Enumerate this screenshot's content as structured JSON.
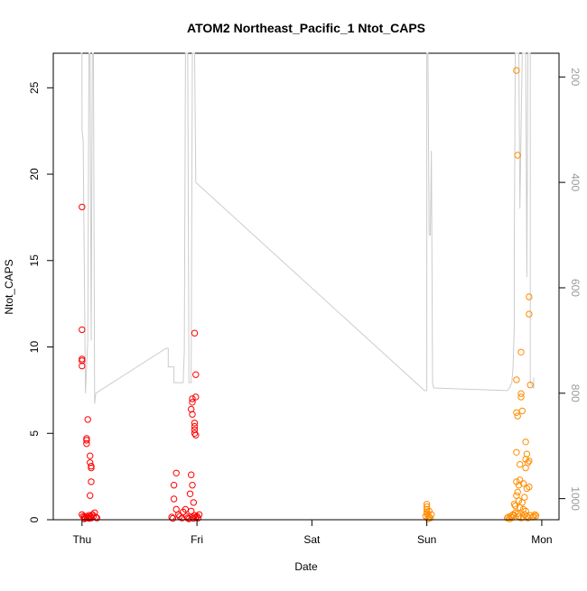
{
  "chart_data": {
    "type": "scatter",
    "title": "ATOM2 Northeast_Pacific_1 Ntot_CAPS",
    "xlabel": "Date",
    "ylabel": "Ntot_CAPS",
    "x_ticks": [
      "Thu",
      "Fri",
      "Sat",
      "Sun",
      "Mon"
    ],
    "xlim_days": [
      -0.25,
      4.15
    ],
    "ylim": [
      0,
      27
    ],
    "y_ticks": [
      0,
      5,
      10,
      15,
      20,
      25
    ],
    "y2_ticks": [
      200,
      400,
      600,
      800,
      1000
    ],
    "y2lim_reversed": [
      1040,
      155
    ],
    "y2_color": "#9a9a9a",
    "grid": false,
    "legend": "none",
    "series": [
      {
        "color": "#ff0000",
        "marker": "open-circle",
        "points": [
          [
            0.0,
            18.1
          ],
          [
            0.0,
            11.0
          ],
          [
            0.0,
            9.3
          ],
          [
            0.0,
            9.2
          ],
          [
            0.0,
            8.9
          ],
          [
            0.05,
            5.8
          ],
          [
            0.04,
            4.7
          ],
          [
            0.04,
            4.6
          ],
          [
            0.04,
            4.4
          ],
          [
            0.07,
            3.7
          ],
          [
            0.07,
            3.3
          ],
          [
            0.08,
            3.1
          ],
          [
            0.08,
            3.0
          ],
          [
            0.08,
            2.2
          ],
          [
            0.07,
            1.4
          ],
          [
            0.0,
            0.3
          ],
          [
            0.01,
            0.2
          ],
          [
            0.02,
            0.15
          ],
          [
            0.03,
            0.1
          ],
          [
            0.04,
            0.2
          ],
          [
            0.05,
            0.12
          ],
          [
            0.06,
            0.25
          ],
          [
            0.07,
            0.18
          ],
          [
            0.08,
            0.1
          ],
          [
            0.09,
            0.3
          ],
          [
            0.1,
            0.2
          ],
          [
            0.11,
            0.4
          ],
          [
            0.12,
            0.15
          ],
          [
            0.13,
            0.1
          ],
          [
            0.02,
            0.05
          ],
          [
            0.06,
            0.08
          ],
          [
            0.82,
            2.7
          ],
          [
            0.8,
            2.0
          ],
          [
            0.8,
            1.2
          ],
          [
            0.82,
            0.6
          ],
          [
            0.78,
            0.15
          ],
          [
            0.79,
            0.08
          ],
          [
            0.84,
            0.3
          ],
          [
            0.85,
            0.2
          ],
          [
            0.87,
            0.1
          ],
          [
            0.88,
            0.45
          ],
          [
            0.9,
            0.6
          ],
          [
            0.91,
            0.2
          ],
          [
            0.92,
            0.1
          ],
          [
            0.93,
            0.05
          ],
          [
            0.95,
            2.6
          ],
          [
            0.96,
            2.0
          ],
          [
            0.94,
            1.5
          ],
          [
            0.97,
            1.0
          ],
          [
            0.95,
            0.5
          ],
          [
            0.96,
            0.15
          ],
          [
            0.97,
            0.08
          ],
          [
            0.98,
            0.25
          ],
          [
            0.99,
            0.12
          ],
          [
            1.0,
            0.2
          ],
          [
            1.01,
            0.1
          ],
          [
            1.02,
            0.3
          ],
          [
            0.96,
            7.0
          ],
          [
            0.96,
            6.8
          ],
          [
            0.95,
            6.4
          ],
          [
            0.96,
            6.1
          ],
          [
            0.98,
            10.8
          ],
          [
            0.99,
            8.4
          ],
          [
            0.99,
            7.1
          ],
          [
            0.98,
            5.6
          ],
          [
            0.98,
            5.4
          ],
          [
            0.98,
            5.2
          ],
          [
            0.98,
            5.0
          ],
          [
            0.99,
            4.9
          ]
        ]
      },
      {
        "color": "#ff8c00",
        "marker": "open-circle",
        "points": [
          [
            3.0,
            0.9
          ],
          [
            3.0,
            0.75
          ],
          [
            3.0,
            0.6
          ],
          [
            3.0,
            0.45
          ],
          [
            3.0,
            0.35
          ],
          [
            3.01,
            0.25
          ],
          [
            3.02,
            0.15
          ],
          [
            3.01,
            0.05
          ],
          [
            2.99,
            0.2
          ],
          [
            3.03,
            0.1
          ],
          [
            3.04,
            0.3
          ],
          [
            3.02,
            0.5
          ],
          [
            3.78,
            26.0
          ],
          [
            3.79,
            21.1
          ],
          [
            3.82,
            9.7
          ],
          [
            3.78,
            8.1
          ],
          [
            3.78,
            6.2
          ],
          [
            3.79,
            6.0
          ],
          [
            3.83,
            6.3
          ],
          [
            3.82,
            7.3
          ],
          [
            3.82,
            7.1
          ],
          [
            3.78,
            3.9
          ],
          [
            3.86,
            4.5
          ],
          [
            3.87,
            3.8
          ],
          [
            3.86,
            3.5
          ],
          [
            3.88,
            3.3
          ],
          [
            3.89,
            3.4
          ],
          [
            3.81,
            3.2
          ],
          [
            3.86,
            3.0
          ],
          [
            3.78,
            2.2
          ],
          [
            3.8,
            2.0
          ],
          [
            3.84,
            2.1
          ],
          [
            3.81,
            2.3
          ],
          [
            3.87,
            1.8
          ],
          [
            3.89,
            1.9
          ],
          [
            3.79,
            1.6
          ],
          [
            3.78,
            1.4
          ],
          [
            3.85,
            1.3
          ],
          [
            3.8,
            1.1
          ],
          [
            3.83,
            1.0
          ],
          [
            3.76,
            0.9
          ],
          [
            3.77,
            0.8
          ],
          [
            3.81,
            0.7
          ],
          [
            3.84,
            0.6
          ],
          [
            3.86,
            0.5
          ],
          [
            3.7,
            0.1
          ],
          [
            3.71,
            0.15
          ],
          [
            3.72,
            0.05
          ],
          [
            3.73,
            0.2
          ],
          [
            3.74,
            0.12
          ],
          [
            3.75,
            0.3
          ],
          [
            3.76,
            0.25
          ],
          [
            3.77,
            0.4
          ],
          [
            3.79,
            0.35
          ],
          [
            3.8,
            0.2
          ],
          [
            3.82,
            0.1
          ],
          [
            3.84,
            0.15
          ],
          [
            3.85,
            0.3
          ],
          [
            3.87,
            0.2
          ],
          [
            3.88,
            0.1
          ],
          [
            3.9,
            0.25
          ],
          [
            3.92,
            0.15
          ],
          [
            3.93,
            0.2
          ],
          [
            3.94,
            0.3
          ],
          [
            3.95,
            0.22
          ],
          [
            3.89,
            12.9
          ],
          [
            3.89,
            11.9
          ],
          [
            3.9,
            7.8
          ]
        ]
      }
    ],
    "line_series": [
      {
        "color": "#cccccc",
        "axis": "right",
        "points": [
          [
            -0.01,
            155
          ],
          [
            0.0,
            155
          ],
          [
            0.0,
            300
          ],
          [
            0.01,
            320
          ],
          [
            0.03,
            800
          ],
          [
            0.05,
            700
          ],
          [
            0.06,
            155
          ],
          [
            0.07,
            155
          ],
          [
            0.08,
            700
          ],
          [
            0.09,
            155
          ],
          [
            0.1,
            155
          ],
          [
            0.11,
            820
          ],
          [
            0.12,
            800
          ],
          [
            0.73,
            715
          ],
          [
            0.75,
            715
          ],
          [
            0.75,
            750
          ],
          [
            0.8,
            750
          ],
          [
            0.8,
            780
          ],
          [
            0.88,
            780
          ],
          [
            0.89,
            720
          ],
          [
            0.9,
            155
          ],
          [
            0.92,
            155
          ],
          [
            0.93,
            780
          ],
          [
            0.95,
            780
          ],
          [
            0.96,
            155
          ],
          [
            0.98,
            155
          ],
          [
            0.99,
            400
          ],
          [
            2.98,
            795
          ],
          [
            3.0,
            795
          ],
          [
            3.0,
            155
          ],
          [
            3.01,
            155
          ],
          [
            3.02,
            500
          ],
          [
            3.03,
            500
          ],
          [
            3.04,
            340
          ],
          [
            3.05,
            780
          ],
          [
            3.06,
            790
          ],
          [
            3.7,
            795
          ],
          [
            3.72,
            790
          ],
          [
            3.74,
            780
          ],
          [
            3.75,
            750
          ],
          [
            3.76,
            680
          ],
          [
            3.76,
            550
          ],
          [
            3.77,
            155
          ],
          [
            3.8,
            155
          ],
          [
            3.81,
            450
          ],
          [
            3.82,
            300
          ],
          [
            3.83,
            155
          ],
          [
            3.86,
            155
          ],
          [
            3.87,
            580
          ],
          [
            3.88,
            155
          ],
          [
            3.9,
            155
          ],
          [
            3.9,
            780
          ],
          [
            3.93,
            790
          ],
          [
            3.93,
            770
          ]
        ]
      }
    ]
  }
}
